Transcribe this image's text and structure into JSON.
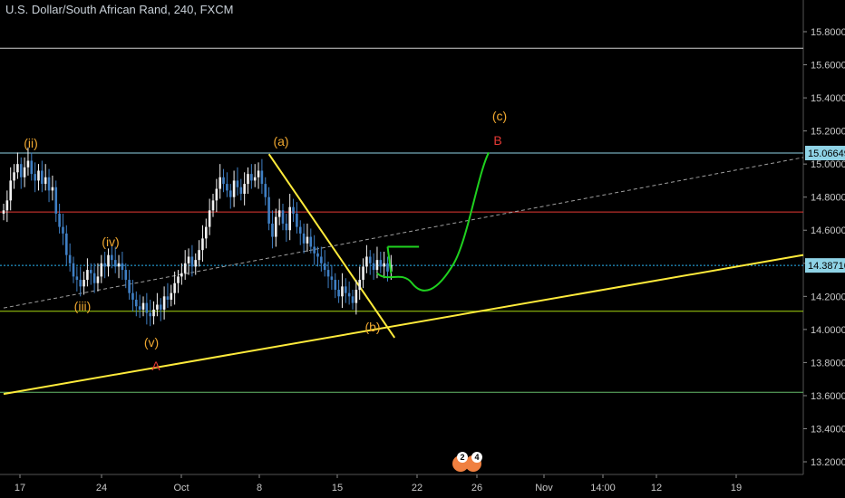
{
  "title": "U.S. Dollar/South African Rand, 240, FXCM",
  "chart_data": {
    "type": "candlestick",
    "symbol": "U.S. Dollar/South African Rand",
    "interval": "240",
    "source": "FXCM",
    "ylim": [
      13.15,
      15.95
    ],
    "price_ticks": [
      "15.80000",
      "15.60000",
      "15.40000",
      "15.20000",
      "15.00000",
      "14.80000",
      "14.60000",
      "14.40000",
      "14.20000",
      "14.00000",
      "13.80000",
      "13.60000",
      "13.40000",
      "13.20000"
    ],
    "time_ticks": [
      "17",
      "24",
      "Oct",
      "8",
      "15",
      "22",
      "26",
      "Nov",
      "14:00",
      "12",
      "19"
    ],
    "price_badges": [
      {
        "value": "15.06649",
        "color": "#8fd3e6"
      },
      {
        "value": "14.38710",
        "color": "#8fd3e6"
      }
    ],
    "horizontal_lines": [
      {
        "price": 15.7,
        "color": "#cfcfcf",
        "style": "solid"
      },
      {
        "price": 15.0665,
        "color": "#8fd3e6",
        "style": "solid"
      },
      {
        "price": 14.71,
        "color": "#e53935",
        "style": "solid"
      },
      {
        "price": 14.3871,
        "color": "#29b6f6",
        "style": "dotted"
      },
      {
        "price": 14.11,
        "color": "#a5d610",
        "style": "solid"
      },
      {
        "price": 13.62,
        "color": "#66bb6a",
        "style": "solid"
      }
    ],
    "closes": [
      14.72,
      14.78,
      14.9,
      14.95,
      15.0,
      14.92,
      14.98,
      15.02,
      14.94,
      14.9,
      14.96,
      14.88,
      14.92,
      14.84,
      14.86,
      14.7,
      14.62,
      14.58,
      14.45,
      14.4,
      14.32,
      14.3,
      14.26,
      14.3,
      14.36,
      14.34,
      14.28,
      14.32,
      14.4,
      14.38,
      14.45,
      14.42,
      14.38,
      14.4,
      14.36,
      14.3,
      14.22,
      14.18,
      14.14,
      14.12,
      14.16,
      14.1,
      14.08,
      14.12,
      14.15,
      14.12,
      14.2,
      14.18,
      14.22,
      14.28,
      14.32,
      14.34,
      14.4,
      14.44,
      14.38,
      14.42,
      14.48,
      14.55,
      14.62,
      14.72,
      14.78,
      14.85,
      14.92,
      14.88,
      14.84,
      14.8,
      14.9,
      14.86,
      14.82,
      14.88,
      14.94,
      14.9,
      14.92,
      14.96,
      14.88,
      14.8,
      14.64,
      14.56,
      14.68,
      14.72,
      14.64,
      14.6,
      14.74,
      14.7,
      14.62,
      14.58,
      14.52,
      14.56,
      14.5,
      14.46,
      14.44,
      14.4,
      14.36,
      14.32,
      14.3,
      14.24,
      14.2,
      14.26,
      14.22,
      14.2,
      14.16,
      14.24,
      14.3,
      14.38,
      14.44,
      14.4,
      14.36,
      14.42,
      14.38,
      14.4,
      14.35,
      14.39
    ],
    "wave_labels": [
      {
        "text": "(ii)",
        "color": "#f0a830"
      },
      {
        "text": "(iv)",
        "color": "#f0a830"
      },
      {
        "text": "(iii)",
        "color": "#f0a830"
      },
      {
        "text": "(v)",
        "color": "#f0a830"
      },
      {
        "text": "A",
        "color": "#e53935"
      },
      {
        "text": "(a)",
        "color": "#f0a830"
      },
      {
        "text": "(b)",
        "color": "#f0a830"
      },
      {
        "text": "(c)",
        "color": "#f0a830"
      },
      {
        "text": "B",
        "color": "#e53935"
      }
    ],
    "trendlines": [
      {
        "color": "#ffeb3b",
        "from": [
          0,
          13.61
        ],
        "to": [
          110,
          14.45
        ]
      },
      {
        "color": "#ffeb3b",
        "from": [
          76,
          15.06
        ],
        "to": [
          112,
          13.95
        ]
      },
      {
        "color": "#9e9e9e",
        "style": "dashed",
        "from": [
          0,
          14.13
        ],
        "to": [
          110,
          15.04
        ]
      }
    ],
    "projection": {
      "color": "#1fd11f"
    },
    "watermark": {
      "badge_left": "2",
      "badge_right": "4"
    }
  }
}
